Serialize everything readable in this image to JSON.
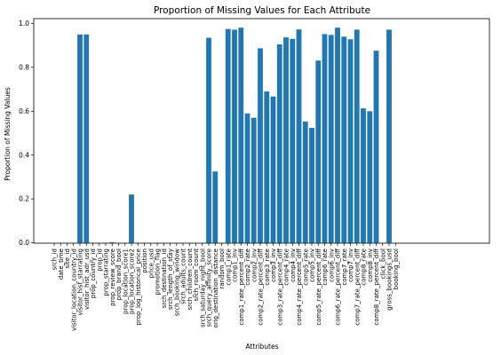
{
  "chart_data": {
    "type": "bar",
    "title": "Proportion of Missing Values for Each Attribute",
    "xlabel": "Attributes",
    "ylabel": "Proportion of Missing Values",
    "ylim": [
      0,
      1.02
    ],
    "yticks": [
      "0.0",
      "0.2",
      "0.4",
      "0.6",
      "0.8",
      "1.0"
    ],
    "grid": false,
    "bar_color": "#1f77b4",
    "categories": [
      "srch_id",
      "date_time",
      "site_id",
      "visitor_location_country_id",
      "visitor_hist_starrating",
      "visitor_hist_adr_usd",
      "prop_country_id",
      "prop_id",
      "prop_starrating",
      "prop_review_score",
      "prop_brand_bool",
      "prop_location_score1",
      "prop_location_score2",
      "prop_log_historical_price",
      "position",
      "price_usd",
      "promotion_flag",
      "srch_destination_id",
      "srch_length_of_stay",
      "srch_booking_window",
      "srch_adults_count",
      "srch_children_count",
      "srch_room_count",
      "srch_saturday_night_bool",
      "srch_query_affinity_score",
      "orig_destination_distance",
      "random_bool",
      "comp1_rate",
      "comp1_inv",
      "comp1_rate_percent_diff",
      "comp2_rate",
      "comp2_inv",
      "comp2_rate_percent_diff",
      "comp3_rate",
      "comp3_inv",
      "comp3_rate_percent_diff",
      "comp4_rate",
      "comp4_inv",
      "comp4_rate_percent_diff",
      "comp5_rate",
      "comp5_inv",
      "comp5_rate_percent_diff",
      "comp6_rate",
      "comp6_inv",
      "comp6_rate_percent_diff",
      "comp7_rate",
      "comp7_inv",
      "comp7_rate_percent_diff",
      "comp8_rate",
      "comp8_inv",
      "comp8_rate_percent_diff",
      "click_bool",
      "gross_bookings_usd",
      "booking_bool"
    ],
    "values": [
      0,
      0,
      0,
      0,
      0.95,
      0.95,
      0,
      0,
      0,
      0.002,
      0,
      0,
      0.22,
      0,
      0,
      0,
      0,
      0,
      0,
      0,
      0,
      0,
      0,
      0,
      0.935,
      0.325,
      0,
      0.975,
      0.972,
      0.981,
      0.59,
      0.57,
      0.887,
      0.69,
      0.667,
      0.905,
      0.937,
      0.93,
      0.973,
      0.553,
      0.524,
      0.831,
      0.952,
      0.948,
      0.981,
      0.94,
      0.928,
      0.972,
      0.613,
      0.6,
      0.876,
      0,
      0.972,
      0
    ]
  }
}
